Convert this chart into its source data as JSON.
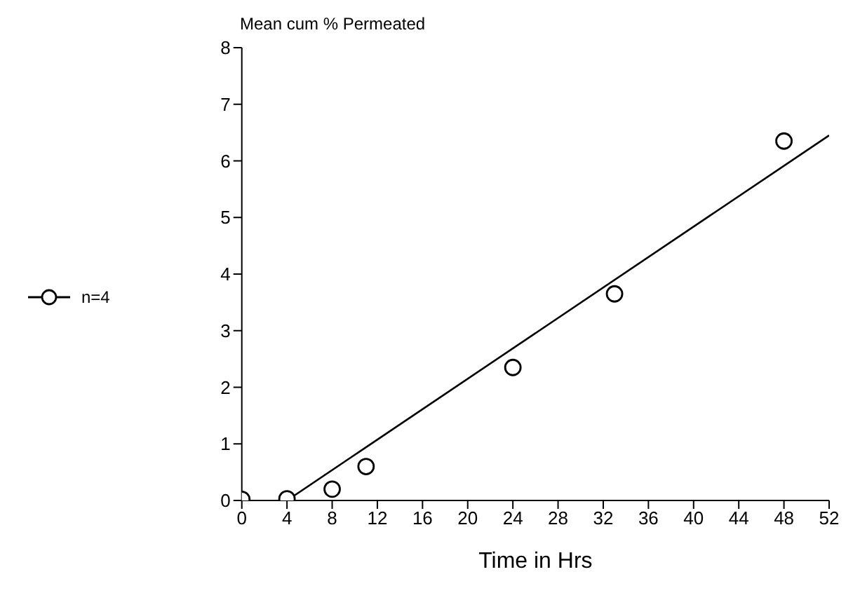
{
  "chart_data": {
    "type": "scatter",
    "xlabel": "Time in Hrs",
    "ylabel": "Mean cum % Permeated",
    "xlim": [
      0,
      52
    ],
    "xticks": [
      0,
      4,
      8,
      12,
      16,
      20,
      24,
      28,
      32,
      36,
      40,
      44,
      48,
      52
    ],
    "ylim": [
      0,
      8
    ],
    "yticks": [
      0,
      1,
      2,
      3,
      4,
      5,
      6,
      7,
      8
    ],
    "grid": false,
    "legend": "left",
    "series": [
      {
        "name": "n=4",
        "marker": "circle",
        "color": "#000000",
        "x": [
          0,
          4,
          8,
          11,
          24,
          33,
          48
        ],
        "values": [
          0.02,
          0.03,
          0.2,
          0.6,
          2.35,
          3.65,
          6.35
        ]
      },
      {
        "type": "line",
        "marker": "none",
        "color": "#000000",
        "x": [
          4,
          52
        ],
        "values": [
          0,
          6.45
        ]
      }
    ]
  }
}
